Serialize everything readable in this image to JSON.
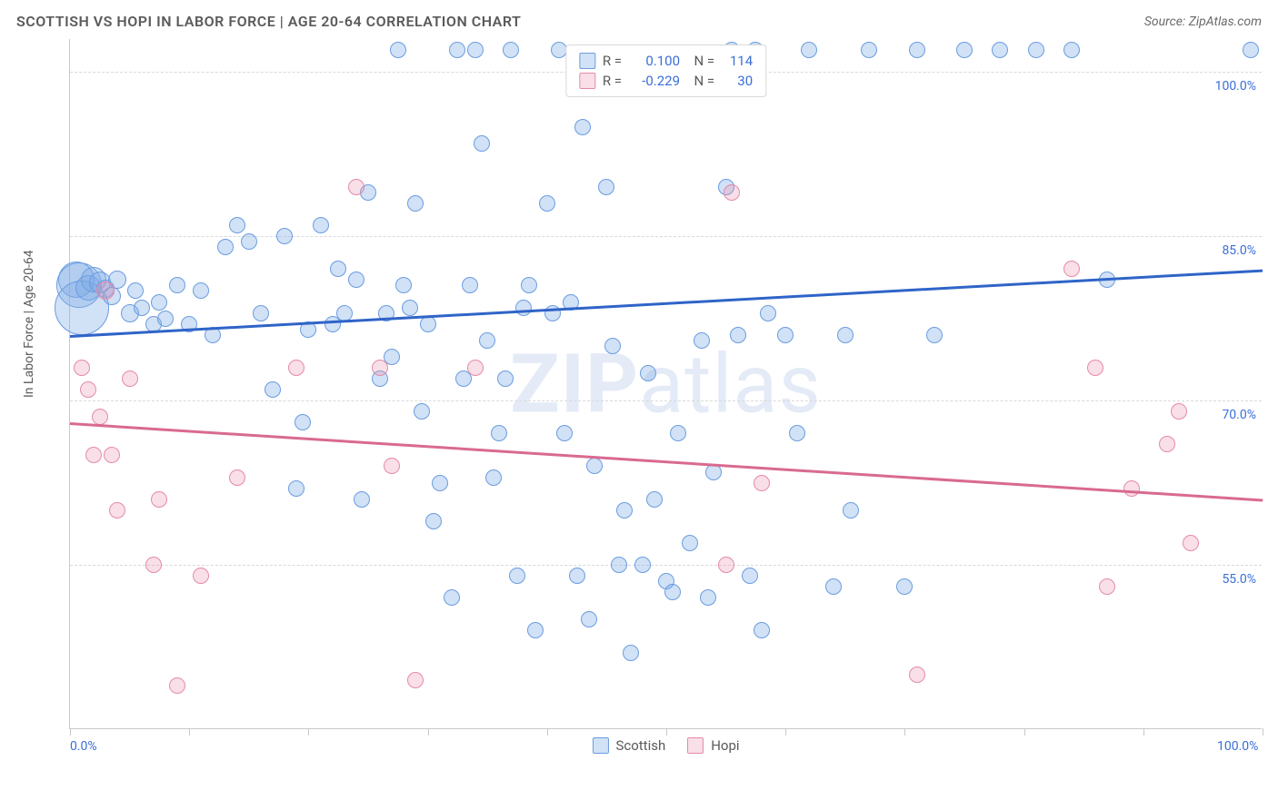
{
  "header": {
    "title": "SCOTTISH VS HOPI IN LABOR FORCE | AGE 20-64 CORRELATION CHART",
    "source": "Source: ZipAtlas.com"
  },
  "chart": {
    "type": "scatter",
    "y_axis_title": "In Labor Force | Age 20-64",
    "watermark": "ZIPatlas",
    "background_color": "#ffffff",
    "grid_color": "#d9d9d9",
    "axis_color": "#c9c9c9",
    "label_color": "#3a6fd8",
    "label_fontsize": 14,
    "xlim": [
      0,
      100
    ],
    "ylim": [
      40,
      103
    ],
    "y_ticks": [
      {
        "value": 55.0,
        "label": "55.0%"
      },
      {
        "value": 70.0,
        "label": "70.0%"
      },
      {
        "value": 85.0,
        "label": "85.0%"
      },
      {
        "value": 100.0,
        "label": "100.0%"
      }
    ],
    "x_ticks": [
      0,
      10,
      20,
      30,
      40,
      50,
      60,
      70,
      80,
      90,
      100
    ],
    "x_labels": [
      {
        "value": 0,
        "label": "0.0%"
      },
      {
        "value": 100,
        "label": "100.0%"
      }
    ],
    "series": [
      {
        "name": "Scottish",
        "fill_color": "rgba(122, 168, 228, 0.35)",
        "stroke_color": "#6a9de0",
        "line_color": "#2f64c8",
        "r_value": "0.100",
        "n_value": "114",
        "trend": {
          "x1": 0,
          "y1": 76.0,
          "x2": 100,
          "y2": 82.0
        },
        "points": [
          {
            "x": 0.5,
            "y": 81,
            "r": 20
          },
          {
            "x": 0.8,
            "y": 80.5,
            "r": 25
          },
          {
            "x": 1.0,
            "y": 78.5,
            "r": 30
          },
          {
            "x": 1.5,
            "y": 80.3,
            "r": 14
          },
          {
            "x": 2.0,
            "y": 81,
            "r": 14
          },
          {
            "x": 2.5,
            "y": 80.8,
            "r": 12
          },
          {
            "x": 3,
            "y": 80.2,
            "r": 10
          },
          {
            "x": 3.5,
            "y": 79.5,
            "r": 10
          },
          {
            "x": 4,
            "y": 81,
            "r": 10
          },
          {
            "x": 5,
            "y": 78,
            "r": 10
          },
          {
            "x": 5.5,
            "y": 80,
            "r": 9
          },
          {
            "x": 6,
            "y": 78.5,
            "r": 9
          },
          {
            "x": 7,
            "y": 77,
            "r": 9
          },
          {
            "x": 7.5,
            "y": 79,
            "r": 9
          },
          {
            "x": 8,
            "y": 77.5,
            "r": 9
          },
          {
            "x": 9,
            "y": 80.5,
            "r": 9
          },
          {
            "x": 10,
            "y": 77,
            "r": 9
          },
          {
            "x": 11,
            "y": 80,
            "r": 9
          },
          {
            "x": 12,
            "y": 76,
            "r": 9
          },
          {
            "x": 13,
            "y": 84,
            "r": 9
          },
          {
            "x": 14,
            "y": 86,
            "r": 9
          },
          {
            "x": 15,
            "y": 84.5,
            "r": 9
          },
          {
            "x": 16,
            "y": 78,
            "r": 9
          },
          {
            "x": 17,
            "y": 71,
            "r": 9
          },
          {
            "x": 18,
            "y": 85,
            "r": 9
          },
          {
            "x": 19,
            "y": 62,
            "r": 9
          },
          {
            "x": 19.5,
            "y": 68,
            "r": 9
          },
          {
            "x": 20,
            "y": 76.5,
            "r": 9
          },
          {
            "x": 21,
            "y": 86,
            "r": 9
          },
          {
            "x": 22,
            "y": 77,
            "r": 9
          },
          {
            "x": 22.5,
            "y": 82,
            "r": 9
          },
          {
            "x": 23,
            "y": 78,
            "r": 9
          },
          {
            "x": 24,
            "y": 81,
            "r": 9
          },
          {
            "x": 24.5,
            "y": 61,
            "r": 9
          },
          {
            "x": 25,
            "y": 89,
            "r": 9
          },
          {
            "x": 26,
            "y": 72,
            "r": 9
          },
          {
            "x": 26.5,
            "y": 78,
            "r": 9
          },
          {
            "x": 27,
            "y": 74,
            "r": 9
          },
          {
            "x": 27.5,
            "y": 102,
            "r": 9
          },
          {
            "x": 28,
            "y": 80.5,
            "r": 9
          },
          {
            "x": 28.5,
            "y": 78.5,
            "r": 9
          },
          {
            "x": 29,
            "y": 88,
            "r": 9
          },
          {
            "x": 29.5,
            "y": 69,
            "r": 9
          },
          {
            "x": 30,
            "y": 77,
            "r": 9
          },
          {
            "x": 30.5,
            "y": 59,
            "r": 9
          },
          {
            "x": 31,
            "y": 62.5,
            "r": 9
          },
          {
            "x": 32,
            "y": 52,
            "r": 9
          },
          {
            "x": 32.5,
            "y": 102,
            "r": 9
          },
          {
            "x": 33,
            "y": 72,
            "r": 9
          },
          {
            "x": 33.5,
            "y": 80.5,
            "r": 9
          },
          {
            "x": 34,
            "y": 102,
            "r": 9
          },
          {
            "x": 34.5,
            "y": 93.5,
            "r": 9
          },
          {
            "x": 35,
            "y": 75.5,
            "r": 9
          },
          {
            "x": 35.5,
            "y": 63,
            "r": 9
          },
          {
            "x": 36,
            "y": 67,
            "r": 9
          },
          {
            "x": 36.5,
            "y": 72,
            "r": 9
          },
          {
            "x": 37,
            "y": 102,
            "r": 9
          },
          {
            "x": 37.5,
            "y": 54,
            "r": 9
          },
          {
            "x": 38,
            "y": 78.5,
            "r": 9
          },
          {
            "x": 38.5,
            "y": 80.5,
            "r": 9
          },
          {
            "x": 39,
            "y": 49,
            "r": 9
          },
          {
            "x": 40,
            "y": 88,
            "r": 9
          },
          {
            "x": 40.5,
            "y": 78,
            "r": 9
          },
          {
            "x": 41,
            "y": 102,
            "r": 9
          },
          {
            "x": 41.5,
            "y": 67,
            "r": 9
          },
          {
            "x": 42,
            "y": 79,
            "r": 9
          },
          {
            "x": 42.5,
            "y": 54,
            "r": 9
          },
          {
            "x": 43,
            "y": 95,
            "r": 9
          },
          {
            "x": 43.5,
            "y": 50,
            "r": 9
          },
          {
            "x": 44,
            "y": 64,
            "r": 9
          },
          {
            "x": 45,
            "y": 89.5,
            "r": 9
          },
          {
            "x": 45.5,
            "y": 75,
            "r": 9
          },
          {
            "x": 46,
            "y": 55,
            "r": 9
          },
          {
            "x": 46.5,
            "y": 60,
            "r": 9
          },
          {
            "x": 47,
            "y": 47,
            "r": 9
          },
          {
            "x": 48,
            "y": 55,
            "r": 9
          },
          {
            "x": 48.5,
            "y": 72.5,
            "r": 9
          },
          {
            "x": 49,
            "y": 61,
            "r": 9
          },
          {
            "x": 50,
            "y": 53.5,
            "r": 9
          },
          {
            "x": 50.5,
            "y": 52.5,
            "r": 9
          },
          {
            "x": 51,
            "y": 67,
            "r": 9
          },
          {
            "x": 52,
            "y": 57,
            "r": 9
          },
          {
            "x": 53,
            "y": 75.5,
            "r": 9
          },
          {
            "x": 53.5,
            "y": 52,
            "r": 9
          },
          {
            "x": 54,
            "y": 63.5,
            "r": 9
          },
          {
            "x": 55,
            "y": 89.5,
            "r": 9
          },
          {
            "x": 55.5,
            "y": 102,
            "r": 9
          },
          {
            "x": 56,
            "y": 76,
            "r": 9
          },
          {
            "x": 57,
            "y": 54,
            "r": 9
          },
          {
            "x": 57.5,
            "y": 102,
            "r": 9
          },
          {
            "x": 58,
            "y": 49,
            "r": 9
          },
          {
            "x": 58.5,
            "y": 78,
            "r": 9
          },
          {
            "x": 60,
            "y": 76,
            "r": 9
          },
          {
            "x": 61,
            "y": 67,
            "r": 9
          },
          {
            "x": 62,
            "y": 102,
            "r": 9
          },
          {
            "x": 64,
            "y": 53,
            "r": 9
          },
          {
            "x": 65,
            "y": 76,
            "r": 9
          },
          {
            "x": 65.5,
            "y": 60,
            "r": 9
          },
          {
            "x": 67,
            "y": 102,
            "r": 9
          },
          {
            "x": 70,
            "y": 53,
            "r": 9
          },
          {
            "x": 71,
            "y": 102,
            "r": 9
          },
          {
            "x": 72.5,
            "y": 76,
            "r": 9
          },
          {
            "x": 75,
            "y": 102,
            "r": 9
          },
          {
            "x": 78,
            "y": 102,
            "r": 9
          },
          {
            "x": 81,
            "y": 102,
            "r": 9
          },
          {
            "x": 84,
            "y": 102,
            "r": 9
          },
          {
            "x": 87,
            "y": 81,
            "r": 9
          },
          {
            "x": 99,
            "y": 102,
            "r": 9
          }
        ]
      },
      {
        "name": "Hopi",
        "fill_color": "rgba(235, 150, 175, 0.30)",
        "stroke_color": "#e58aa8",
        "line_color": "#d96a8f",
        "r_value": "-0.229",
        "n_value": "30",
        "trend": {
          "x1": 0,
          "y1": 68.0,
          "x2": 100,
          "y2": 61.0
        },
        "points": [
          {
            "x": 1,
            "y": 73,
            "r": 9
          },
          {
            "x": 1.5,
            "y": 71,
            "r": 9
          },
          {
            "x": 2,
            "y": 65,
            "r": 9
          },
          {
            "x": 2.5,
            "y": 68.5,
            "r": 9
          },
          {
            "x": 3,
            "y": 80,
            "r": 10
          },
          {
            "x": 3.5,
            "y": 65,
            "r": 9
          },
          {
            "x": 4,
            "y": 60,
            "r": 9
          },
          {
            "x": 5,
            "y": 72,
            "r": 9
          },
          {
            "x": 7,
            "y": 55,
            "r": 9
          },
          {
            "x": 7.5,
            "y": 61,
            "r": 9
          },
          {
            "x": 9,
            "y": 44,
            "r": 9
          },
          {
            "x": 11,
            "y": 54,
            "r": 9
          },
          {
            "x": 14,
            "y": 63,
            "r": 9
          },
          {
            "x": 19,
            "y": 73,
            "r": 9
          },
          {
            "x": 24,
            "y": 89.5,
            "r": 9
          },
          {
            "x": 26,
            "y": 73,
            "r": 9
          },
          {
            "x": 27,
            "y": 64,
            "r": 9
          },
          {
            "x": 29,
            "y": 44.5,
            "r": 9
          },
          {
            "x": 34,
            "y": 73,
            "r": 9
          },
          {
            "x": 55,
            "y": 55,
            "r": 9
          },
          {
            "x": 55.5,
            "y": 89,
            "r": 9
          },
          {
            "x": 58,
            "y": 62.5,
            "r": 9
          },
          {
            "x": 71,
            "y": 45,
            "r": 9
          },
          {
            "x": 84,
            "y": 82,
            "r": 9
          },
          {
            "x": 86,
            "y": 73,
            "r": 9
          },
          {
            "x": 87,
            "y": 53,
            "r": 9
          },
          {
            "x": 89,
            "y": 62,
            "r": 9
          },
          {
            "x": 92,
            "y": 66,
            "r": 9
          },
          {
            "x": 93,
            "y": 69,
            "r": 9
          },
          {
            "x": 94,
            "y": 57,
            "r": 9
          }
        ]
      }
    ],
    "legend_bottom": [
      {
        "label": "Scottish",
        "fill": "rgba(122,168,228,0.35)",
        "stroke": "#6a9de0"
      },
      {
        "label": "Hopi",
        "fill": "rgba(235,150,175,0.30)",
        "stroke": "#e58aa8"
      }
    ]
  }
}
